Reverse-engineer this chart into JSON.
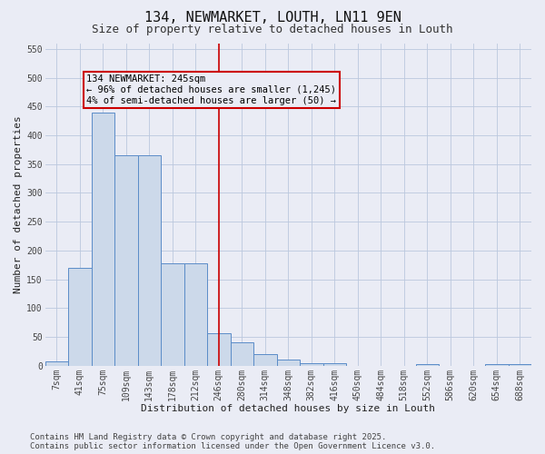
{
  "title": "134, NEWMARKET, LOUTH, LN11 9EN",
  "subtitle": "Size of property relative to detached houses in Louth",
  "xlabel": "Distribution of detached houses by size in Louth",
  "ylabel": "Number of detached properties",
  "categories": [
    "7sqm",
    "41sqm",
    "75sqm",
    "109sqm",
    "143sqm",
    "178sqm",
    "212sqm",
    "246sqm",
    "280sqm",
    "314sqm",
    "348sqm",
    "382sqm",
    "416sqm",
    "450sqm",
    "484sqm",
    "518sqm",
    "552sqm",
    "586sqm",
    "620sqm",
    "654sqm",
    "688sqm"
  ],
  "values": [
    8,
    170,
    440,
    365,
    365,
    178,
    178,
    57,
    40,
    20,
    10,
    5,
    5,
    0,
    0,
    0,
    3,
    0,
    0,
    3,
    3
  ],
  "bar_color": "#ccd9ea",
  "bar_edge_color": "#5b8cc8",
  "grid_color": "#bbc8de",
  "background_color": "#eaecf5",
  "vline_x": 7,
  "vline_color": "#cc0000",
  "annotation_text": "134 NEWMARKET: 245sqm\n← 96% of detached houses are smaller (1,245)\n4% of semi-detached houses are larger (50) →",
  "annotation_box_color": "#cc0000",
  "ylim": [
    0,
    560
  ],
  "yticks": [
    0,
    50,
    100,
    150,
    200,
    250,
    300,
    350,
    400,
    450,
    500,
    550
  ],
  "footer": "Contains HM Land Registry data © Crown copyright and database right 2025.\nContains public sector information licensed under the Open Government Licence v3.0.",
  "title_fontsize": 11,
  "subtitle_fontsize": 9,
  "label_fontsize": 8,
  "tick_fontsize": 7,
  "footer_fontsize": 6.5,
  "annot_fontsize": 7.5
}
